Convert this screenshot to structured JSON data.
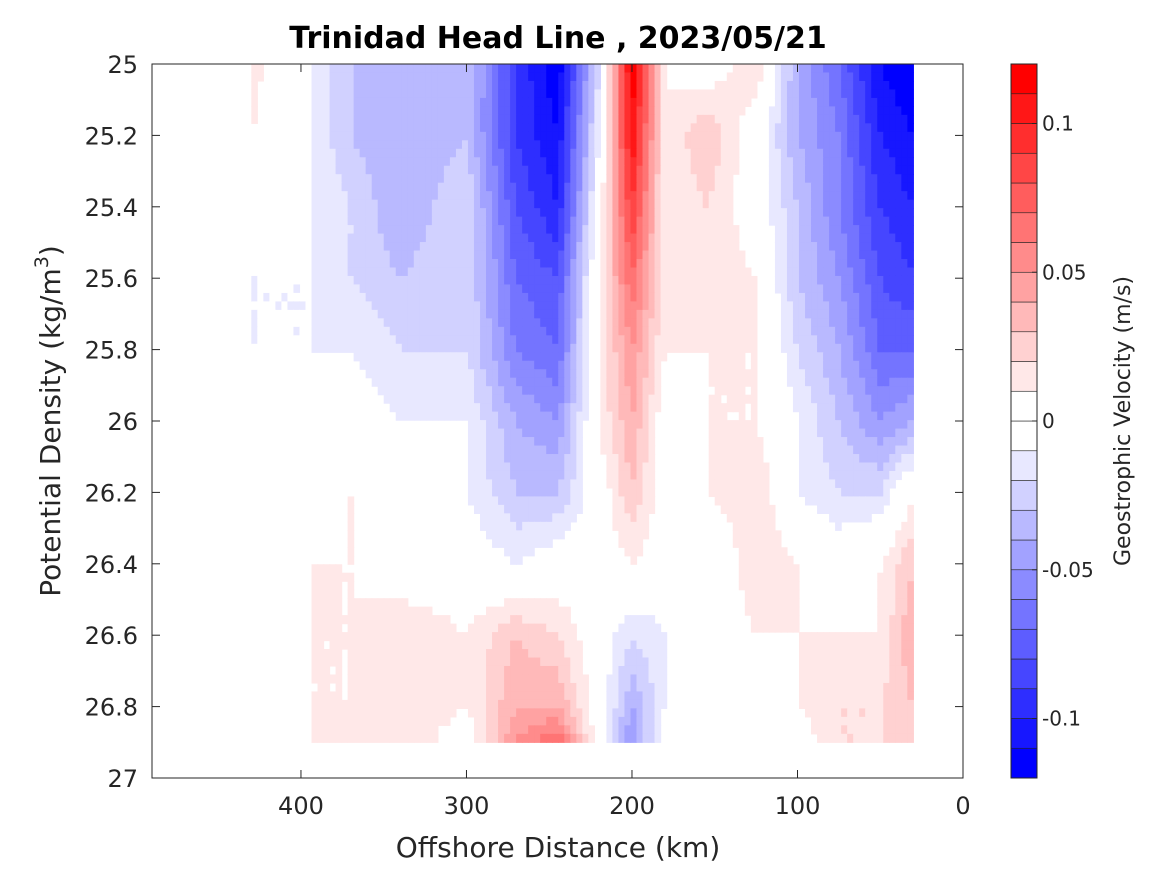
{
  "chart_data": {
    "type": "contourf",
    "title": "Trinidad Head Line , 2023/05/21",
    "xlabel": "Offshore Distance (km)",
    "ylabel": "Potential Density (kg/m",
    "ylabel_sup": "3",
    "ylabel_close": ")",
    "xlim": [
      490,
      0
    ],
    "ylim": [
      25,
      27
    ],
    "x_reversed": true,
    "y_reversed": true,
    "xticks": [
      400,
      300,
      200,
      100,
      0
    ],
    "yticks": [
      25,
      25.2,
      25.4,
      25.6,
      25.8,
      26,
      26.2,
      26.4,
      26.6,
      26.8,
      27
    ],
    "colorbar": {
      "label": "Geostrophic Velocity (m/s)",
      "clim": [
        -0.12,
        0.12
      ],
      "step": 0.01,
      "ticks": [
        0.1,
        0.05,
        0,
        -0.05,
        -0.1
      ],
      "low_color": "#0000ff",
      "high_color": "#ff0000",
      "mid_color": "#ffffff"
    },
    "x": [
      430,
      395,
      370,
      340,
      300,
      270,
      245,
      220,
      200,
      180,
      155,
      125,
      100,
      75,
      50,
      30
    ],
    "y": [
      25,
      25.2,
      25.4,
      25.6,
      25.8,
      26,
      26.2,
      26.4,
      26.6,
      26.8,
      26.9
    ],
    "z": [
      [
        0.015,
        -0.01,
        -0.03,
        -0.04,
        -0.03,
        -0.09,
        -0.12,
        -0.02,
        0.12,
        0.01,
        0.0,
        0.02,
        -0.04,
        -0.07,
        -0.11,
        -0.12
      ],
      [
        0.01,
        -0.01,
        -0.03,
        -0.04,
        -0.03,
        -0.09,
        -0.11,
        -0.01,
        0.11,
        0.01,
        0.03,
        0.0,
        -0.04,
        -0.06,
        -0.1,
        -0.11
      ],
      [
        0.0,
        -0.01,
        -0.02,
        -0.04,
        -0.02,
        -0.08,
        -0.1,
        0.0,
        0.09,
        0.01,
        0.02,
        0.0,
        -0.03,
        -0.06,
        -0.09,
        -0.1
      ],
      [
        -0.01,
        -0.01,
        -0.02,
        -0.03,
        -0.02,
        -0.07,
        -0.08,
        0.01,
        0.07,
        0.01,
        0.02,
        0.01,
        -0.03,
        -0.05,
        -0.08,
        -0.09
      ],
      [
        -0.01,
        -0.01,
        -0.01,
        -0.02,
        -0.02,
        -0.06,
        -0.07,
        0.01,
        0.05,
        0.01,
        0.01,
        0.01,
        -0.02,
        -0.04,
        -0.07,
        -0.07
      ],
      [
        -0.01,
        0.0,
        0.0,
        -0.01,
        -0.01,
        -0.04,
        -0.05,
        0.01,
        0.04,
        0.0,
        0.01,
        0.01,
        -0.01,
        -0.03,
        -0.05,
        -0.04
      ],
      [
        0.0,
        0.0,
        0.01,
        0.0,
        -0.01,
        -0.03,
        -0.03,
        0.0,
        0.03,
        0.0,
        0.01,
        0.02,
        -0.01,
        -0.02,
        -0.02,
        0.01
      ],
      [
        0.0,
        0.01,
        0.01,
        0.0,
        0.0,
        -0.01,
        0.0,
        0.0,
        0.01,
        0.0,
        -0.01,
        0.02,
        0.01,
        0.0,
        0.01,
        0.03
      ],
      [
        0.0,
        0.01,
        0.01,
        0.02,
        0.01,
        0.03,
        0.02,
        0.0,
        -0.02,
        -0.01,
        0.0,
        0.01,
        0.01,
        0.01,
        0.01,
        0.04
      ],
      [
        0.0,
        0.01,
        0.01,
        0.02,
        0.01,
        0.04,
        0.04,
        0.0,
        -0.04,
        -0.01,
        0.0,
        0.0,
        0.01,
        0.02,
        0.02,
        0.03
      ],
      [
        0.0,
        0.01,
        0.02,
        0.02,
        0.0,
        0.05,
        0.07,
        0.0,
        -0.05,
        0.0,
        0.0,
        -0.01,
        0.0,
        0.02,
        0.02,
        0.03
      ]
    ]
  }
}
